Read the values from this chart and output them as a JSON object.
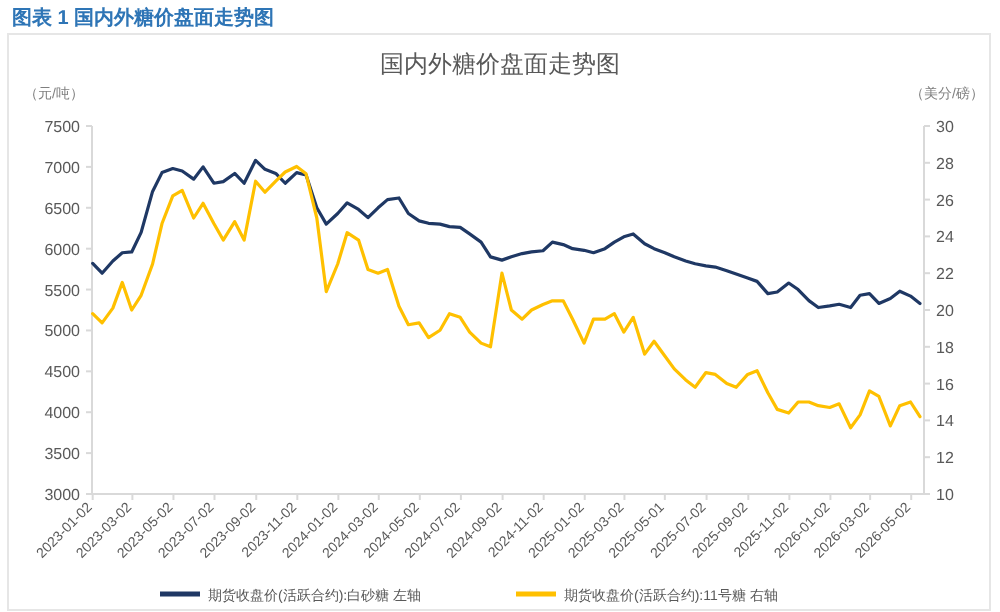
{
  "chart_data": {
    "type": "line",
    "title": "国内外糖价盘面走势图",
    "annotations": [
      "图表 1 国内外糖价盘面走势图"
    ],
    "ylabel": "（元/吨）",
    "y2label": "（美分/磅）",
    "x": [
      "2023-01-02",
      "2023-01-16",
      "2023-02-01",
      "2023-02-15",
      "2023-03-01",
      "2023-03-15",
      "2023-04-01",
      "2023-04-15",
      "2023-05-01",
      "2023-05-15",
      "2023-06-01",
      "2023-06-15",
      "2023-07-01",
      "2023-07-15",
      "2023-08-01",
      "2023-08-15",
      "2023-09-01",
      "2023-09-15",
      "2023-10-01",
      "2023-10-15",
      "2023-11-01",
      "2023-11-15",
      "2023-12-01",
      "2023-12-15",
      "2024-01-01",
      "2024-01-15",
      "2024-02-01",
      "2024-02-15",
      "2024-03-01",
      "2024-03-15",
      "2024-04-01",
      "2024-04-15",
      "2024-05-01",
      "2024-05-15",
      "2024-06-01",
      "2024-06-15",
      "2024-07-01",
      "2024-07-15",
      "2024-08-01",
      "2024-08-15",
      "2024-09-01",
      "2024-09-15",
      "2024-10-01",
      "2024-10-15",
      "2024-11-01",
      "2024-11-15",
      "2024-12-01",
      "2024-12-15",
      "2025-01-01",
      "2025-01-15",
      "2025-02-01",
      "2025-02-15",
      "2025-03-01",
      "2025-03-15",
      "2025-04-01",
      "2025-04-15",
      "2025-05-01",
      "2025-05-15",
      "2025-06-01",
      "2025-06-15",
      "2025-07-01",
      "2025-07-15",
      "2025-08-01",
      "2025-08-15",
      "2025-09-01",
      "2025-09-15",
      "2025-10-01",
      "2025-10-15",
      "2025-11-01",
      "2025-11-15",
      "2025-12-01",
      "2025-12-15",
      "2026-01-01",
      "2026-01-15",
      "2026-02-01",
      "2026-02-15",
      "2026-03-01",
      "2026-03-15",
      "2026-04-01",
      "2026-04-15",
      "2026-05-01",
      "2026-05-15"
    ],
    "series": [
      {
        "name": "期货收盘价(活跃合约):白砂糖 左轴",
        "color": "#1f3864",
        "values": [
          5820,
          5700,
          5850,
          5950,
          5960,
          6200,
          6700,
          6930,
          6980,
          6950,
          6850,
          7000,
          6800,
          6820,
          6920,
          6800,
          7080,
          6970,
          6920,
          6800,
          6930,
          6900,
          6500,
          6300,
          6430,
          6560,
          6480,
          6380,
          6500,
          6600,
          6620,
          6430,
          6340,
          6310,
          6300,
          6270,
          6260,
          6180,
          6080,
          5900,
          5860,
          5900,
          5940,
          5960,
          5975,
          6080,
          6050,
          6000,
          5980,
          5950,
          6000,
          6080,
          6145,
          6180,
          6060,
          6000,
          5950,
          5900,
          5850,
          5815,
          5790,
          5775,
          5730,
          5690,
          5640,
          5600,
          5450,
          5470,
          5580,
          5500,
          5365,
          5280,
          5300,
          5320,
          5280,
          5430,
          5450,
          5330,
          5390,
          5480,
          5420,
          5330
        ]
      },
      {
        "name": "期货收盘价(活跃合约):11号糖 右轴",
        "color": "#ffc000",
        "axis": "y2",
        "values": [
          19.8,
          19.3,
          20.1,
          21.5,
          20.0,
          20.8,
          22.5,
          24.7,
          26.2,
          26.5,
          25.0,
          25.8,
          24.7,
          23.8,
          24.8,
          23.8,
          27.0,
          26.4,
          27.0,
          27.5,
          27.8,
          27.4,
          25.0,
          21.0,
          22.5,
          24.2,
          23.8,
          22.2,
          22.0,
          22.2,
          20.2,
          19.2,
          19.3,
          18.5,
          18.9,
          19.8,
          19.6,
          18.8,
          18.2,
          18.0,
          22.0,
          20.0,
          19.5,
          20.0,
          20.3,
          20.5,
          20.5,
          19.5,
          18.2,
          19.5,
          19.5,
          19.8,
          18.8,
          19.6,
          17.6,
          18.3,
          17.5,
          16.8,
          16.2,
          15.8,
          16.6,
          16.5,
          16.0,
          15.8,
          16.5,
          16.7,
          15.5,
          14.6,
          14.4,
          15.0,
          15.0,
          14.8,
          14.7,
          14.9,
          13.6,
          14.3,
          15.6,
          15.3,
          13.7,
          14.8,
          15.0,
          14.2
        ]
      }
    ],
    "xlim": [
      "2023-01-01",
      "2026-05-21"
    ],
    "xticks": [
      "2023-01-02",
      "2023-03-02",
      "2023-05-02",
      "2023-07-02",
      "2023-09-02",
      "2023-11-02",
      "2024-01-02",
      "2024-03-02",
      "2024-05-02",
      "2024-07-02",
      "2024-09-02",
      "2024-11-02",
      "2025-01-02",
      "2025-03-02",
      "2025-05-01",
      "2025-07-02",
      "2025-09-02",
      "2025-11-02",
      "2026-01-02",
      "2026-03-02",
      "2026-05-02"
    ],
    "ylim": [
      3000,
      7500
    ],
    "yticks": [
      3000,
      3500,
      4000,
      4500,
      5000,
      5500,
      6000,
      6500,
      7000,
      7500
    ],
    "y2lim": [
      10,
      30
    ],
    "y2ticks": [
      10,
      12,
      14,
      16,
      18,
      20,
      22,
      24,
      26,
      28,
      30
    ],
    "legend": "bottom"
  }
}
